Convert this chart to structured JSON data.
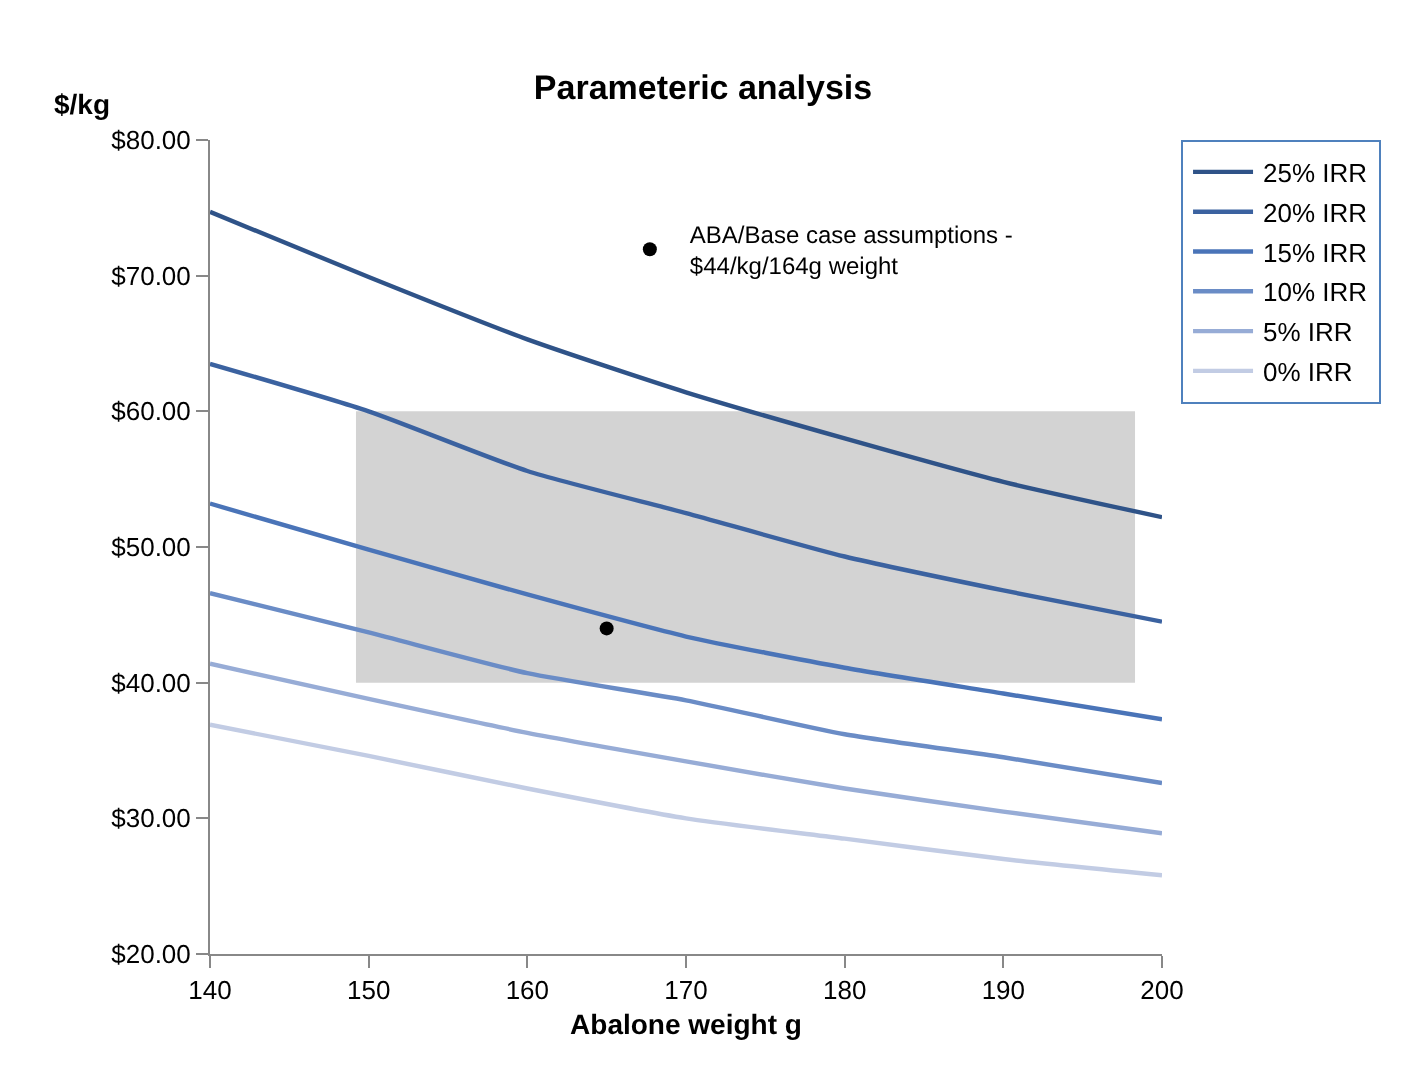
{
  "chart_data": {
    "type": "line",
    "title": "Parameteric analysis",
    "xlabel": "Abalone weight g",
    "ylabel": "$/kg",
    "x": [
      140,
      150,
      160,
      170,
      180,
      190,
      200
    ],
    "series": [
      {
        "name": "25% IRR",
        "color": "#2f5388",
        "values": [
          74.7,
          69.9,
          65.3,
          61.4,
          58.0,
          54.8,
          52.2
        ]
      },
      {
        "name": "20% IRR",
        "color": "#3b62a0",
        "values": [
          63.5,
          60.0,
          55.6,
          52.5,
          49.3,
          46.8,
          44.5
        ]
      },
      {
        "name": "15% IRR",
        "color": "#4a74b8",
        "values": [
          53.2,
          49.8,
          46.5,
          43.4,
          41.1,
          39.2,
          37.3
        ]
      },
      {
        "name": "10% IRR",
        "color": "#6a8cc6",
        "values": [
          46.6,
          43.7,
          40.7,
          38.7,
          36.2,
          34.5,
          32.6
        ]
      },
      {
        "name": "5% IRR",
        "color": "#97acd6",
        "values": [
          41.4,
          38.8,
          36.3,
          34.2,
          32.2,
          30.5,
          28.9
        ]
      },
      {
        "name": "0% IRR",
        "color": "#c2cce4",
        "values": [
          36.9,
          34.6,
          32.2,
          30.0,
          28.5,
          27.0,
          25.8
        ]
      },
      {
        "name": "ABA/Base case assumptions -\n$44/kg/164g weight",
        "type": "scatter",
        "marker": "circle",
        "color": "#000000",
        "x": [
          165
        ],
        "values": [
          44
        ]
      },
      {
        "type": "area",
        "color": "#d3d3d3",
        "x": [
          149.2,
          198.3
        ],
        "values": [
          null,
          null
        ],
        "lower": [
          40,
          40
        ],
        "upper": [
          60,
          60
        ]
      }
    ],
    "xlim": [
      140,
      200
    ],
    "xticks": [
      140,
      150,
      160,
      170,
      180,
      190,
      200
    ],
    "ylim": [
      20,
      80
    ],
    "yticks": [
      {
        "value": 20,
        "label": "$20.00"
      },
      {
        "value": 30,
        "label": "$30.00"
      },
      {
        "value": 40,
        "label": "$40.00"
      },
      {
        "value": 50,
        "label": "$50.00"
      },
      {
        "value": 60,
        "label": "$60.00"
      },
      {
        "value": 70,
        "label": "$70.00"
      },
      {
        "value": 80,
        "label": "$80.00"
      }
    ],
    "grid": false,
    "legend": "top right",
    "marker": "none",
    "line_style": "solid"
  }
}
